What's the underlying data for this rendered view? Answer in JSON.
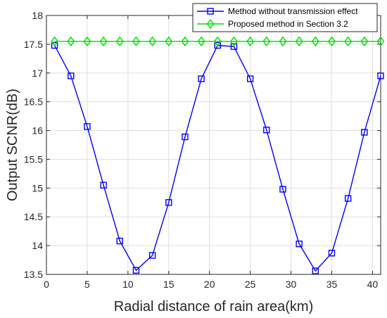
{
  "chart_data": {
    "type": "line",
    "xlabel": "Radial distance of rain area(km)",
    "ylabel": "Output SCNR(dB)",
    "xlim": [
      0,
      41
    ],
    "ylim": [
      13.5,
      18
    ],
    "xticks": [
      "0",
      "5",
      "10",
      "15",
      "20",
      "25",
      "30",
      "35",
      "40"
    ],
    "yticks": [
      "13.5",
      "14",
      "14.5",
      "15",
      "15.5",
      "16",
      "16.5",
      "17",
      "17.5",
      "18"
    ],
    "grid": true,
    "legend_position": "top-right",
    "x": [
      1,
      3,
      5,
      7,
      9,
      11,
      13,
      15,
      17,
      19,
      21,
      23,
      25,
      27,
      29,
      31,
      33,
      35,
      37,
      39,
      41
    ],
    "series": [
      {
        "name": "Method without transmission effect",
        "color": "#0000ff",
        "marker": "square",
        "values": [
          17.48,
          16.95,
          16.07,
          15.05,
          14.08,
          13.57,
          13.83,
          14.75,
          15.89,
          16.9,
          17.48,
          17.46,
          16.9,
          16.01,
          14.98,
          14.03,
          13.56,
          13.87,
          14.82,
          15.97,
          16.95
        ]
      },
      {
        "name": "Proposed method in Section 3.2",
        "color": "#00dd00",
        "marker": "diamond",
        "values": [
          17.55,
          17.55,
          17.55,
          17.55,
          17.55,
          17.55,
          17.55,
          17.55,
          17.55,
          17.55,
          17.55,
          17.55,
          17.55,
          17.55,
          17.55,
          17.55,
          17.55,
          17.55,
          17.55,
          17.55,
          17.55
        ]
      }
    ]
  }
}
